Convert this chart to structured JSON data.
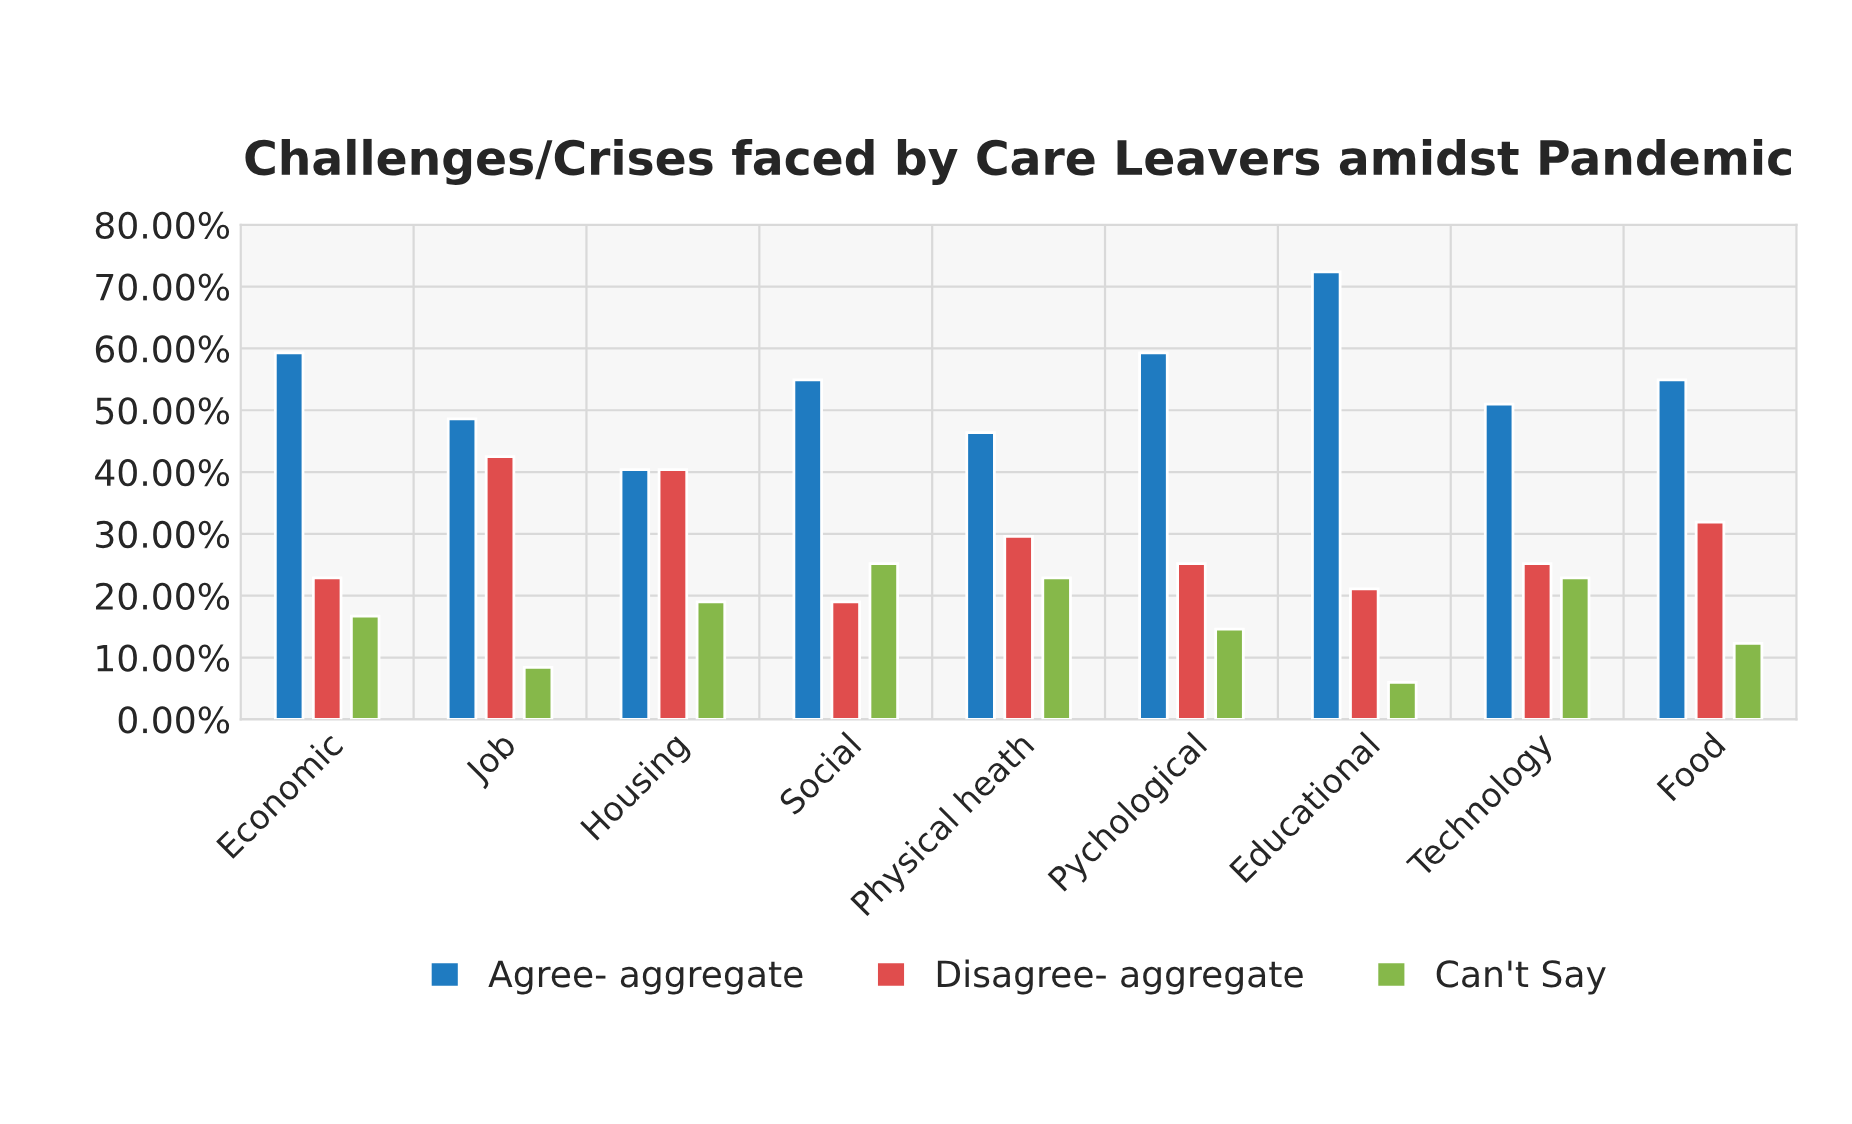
{
  "chart_data": {
    "type": "bar",
    "title": "Challenges/Crises faced by Care Leavers amidst Pandemic",
    "categories": [
      "Economic",
      "Job",
      "Housing",
      "Social",
      "Physical heath",
      "Pychological",
      "Educational",
      "Technology",
      "Food"
    ],
    "series": [
      {
        "name": "Agree- aggregate",
        "color": "#1f7bc1",
        "values": [
          59.3,
          48.6,
          40.4,
          54.9,
          46.4,
          59.3,
          72.4,
          51.0,
          54.9
        ]
      },
      {
        "name": "Disagree- aggregate",
        "color": "#e04d4d",
        "values": [
          22.9,
          42.5,
          40.4,
          19.0,
          29.6,
          25.2,
          21.1,
          25.2,
          31.9
        ]
      },
      {
        "name": "Can't Say",
        "color": "#86b84a",
        "values": [
          16.7,
          8.4,
          19.0,
          25.2,
          22.9,
          14.6,
          6.0,
          22.9,
          12.3
        ]
      }
    ],
    "ylim": [
      0,
      80
    ],
    "yticks": [
      {
        "value": 0,
        "label": "0.00%"
      },
      {
        "value": 10,
        "label": "10.00%"
      },
      {
        "value": 20,
        "label": "20.00%"
      },
      {
        "value": 30,
        "label": "30.00%"
      },
      {
        "value": 40,
        "label": "40.00%"
      },
      {
        "value": 50,
        "label": "50.00%"
      },
      {
        "value": 60,
        "label": "60.00%"
      },
      {
        "value": 70,
        "label": "70.00%"
      },
      {
        "value": 80,
        "label": "80.00%"
      }
    ],
    "grid": true,
    "legend": "bottom"
  }
}
